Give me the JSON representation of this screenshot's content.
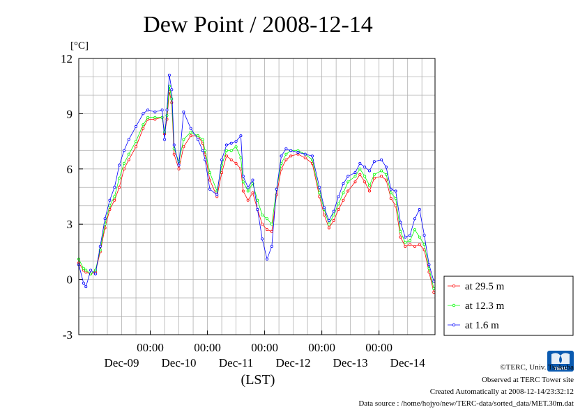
{
  "chart_data": {
    "type": "line",
    "title": "Dew Point / 2008-12-14",
    "y_unit": "[°C]",
    "xlabel": "(LST)",
    "ylim": [
      -3,
      12
    ],
    "y_ticks": [
      "12",
      "9",
      "6",
      "3",
      "0",
      "-3"
    ],
    "xlim": [
      "2008-12-08T18:00",
      "2008-12-14T23:30"
    ],
    "x_time_labels": [
      "00:00",
      "00:00",
      "00:00",
      "00:00",
      "00:00"
    ],
    "x_date_labels": [
      "Dec-09",
      "Dec-10",
      "Dec-11",
      "Dec-12",
      "Dec-13",
      "Dec-14"
    ],
    "grid": true,
    "legend_position": "right-bottom",
    "series": [
      {
        "name": "at 29.5 m",
        "color": "#ff0000",
        "x": [
          "12-08 18:00",
          "12-08 20:00",
          "12-08 21:00",
          "12-08 23:00",
          "12-09 01:00",
          "12-09 03:00",
          "12-09 05:00",
          "12-09 07:00",
          "12-09 09:00",
          "12-09 11:00",
          "12-09 13:00",
          "12-09 15:00",
          "12-09 18:00",
          "12-09 21:00",
          "12-09 23:00",
          "12-10 02:00",
          "12-10 05:00",
          "12-10 06:00",
          "12-10 07:00",
          "12-10 08:00",
          "12-10 09:00",
          "12-10 10:00",
          "12-10 12:00",
          "12-10 14:00",
          "12-10 17:00",
          "12-10 20:00",
          "12-10 22:00",
          "12-10 23:00",
          "12-11 01:00",
          "12-11 04:00",
          "12-11 06:00",
          "12-11 08:00",
          "12-11 10:00",
          "12-11 12:00",
          "12-11 14:00",
          "12-11 15:00",
          "12-11 17:00",
          "12-11 19:00",
          "12-11 21:00",
          "12-11 23:00",
          "12-12 01:00",
          "12-12 03:00",
          "12-12 05:00",
          "12-12 07:00",
          "12-12 09:00",
          "12-12 11:00",
          "12-12 14:00",
          "12-12 17:00",
          "12-12 20:00",
          "12-12 23:00",
          "12-13 01:00",
          "12-13 03:00",
          "12-13 05:00",
          "12-13 07:00",
          "12-13 09:00",
          "12-13 11:00",
          "12-13 14:00",
          "12-13 16:00",
          "12-13 18:00",
          "12-13 20:00",
          "12-13 22:00",
          "12-14 01:00",
          "12-14 03:00",
          "12-14 05:00",
          "12-14 07:00",
          "12-14 09:00",
          "12-14 11:00",
          "12-14 13:00",
          "12-14 15:00",
          "12-14 17:00",
          "12-14 19:00",
          "12-14 21:00",
          "12-14 23:00"
        ],
        "y": [
          0.9,
          0.5,
          0.4,
          0.3,
          0.4,
          1.5,
          2.8,
          3.8,
          4.3,
          5.0,
          6.0,
          6.5,
          7.2,
          8.2,
          8.7,
          8.7,
          8.8,
          7.9,
          8.7,
          10.2,
          9.6,
          6.8,
          6.0,
          7.2,
          7.8,
          7.8,
          7.4,
          6.8,
          5.4,
          4.5,
          5.8,
          6.7,
          6.5,
          6.3,
          6.0,
          4.8,
          4.3,
          4.7,
          3.8,
          3.0,
          2.7,
          2.6,
          4.6,
          6.0,
          6.5,
          6.7,
          6.8,
          6.6,
          6.3,
          4.5,
          3.5,
          2.8,
          3.2,
          3.8,
          4.3,
          4.8,
          5.3,
          5.7,
          5.3,
          4.8,
          5.5,
          5.6,
          5.4,
          4.4,
          4.0,
          2.3,
          1.8,
          1.9,
          1.8,
          1.9,
          1.6,
          0.4,
          -0.7
        ]
      },
      {
        "name": "at 12.3 m",
        "color": "#00ff00",
        "x": [
          "12-08 18:00",
          "12-08 20:00",
          "12-08 21:00",
          "12-08 23:00",
          "12-09 01:00",
          "12-09 03:00",
          "12-09 05:00",
          "12-09 07:00",
          "12-09 09:00",
          "12-09 11:00",
          "12-09 13:00",
          "12-09 15:00",
          "12-09 18:00",
          "12-09 21:00",
          "12-09 23:00",
          "12-10 02:00",
          "12-10 05:00",
          "12-10 06:00",
          "12-10 07:00",
          "12-10 08:00",
          "12-10 09:00",
          "12-10 10:00",
          "12-10 12:00",
          "12-10 14:00",
          "12-10 17:00",
          "12-10 20:00",
          "12-10 22:00",
          "12-10 23:00",
          "12-11 01:00",
          "12-11 04:00",
          "12-11 06:00",
          "12-11 08:00",
          "12-11 10:00",
          "12-11 12:00",
          "12-11 14:00",
          "12-11 15:00",
          "12-11 17:00",
          "12-11 19:00",
          "12-11 21:00",
          "12-11 23:00",
          "12-12 01:00",
          "12-12 03:00",
          "12-12 05:00",
          "12-12 07:00",
          "12-12 09:00",
          "12-12 11:00",
          "12-12 14:00",
          "12-12 17:00",
          "12-12 20:00",
          "12-12 23:00",
          "12-13 01:00",
          "12-13 03:00",
          "12-13 05:00",
          "12-13 07:00",
          "12-13 09:00",
          "12-13 11:00",
          "12-13 14:00",
          "12-13 16:00",
          "12-13 18:00",
          "12-13 20:00",
          "12-13 22:00",
          "12-14 01:00",
          "12-14 03:00",
          "12-14 05:00",
          "12-14 07:00",
          "12-14 09:00",
          "12-14 11:00",
          "12-14 13:00",
          "12-14 15:00",
          "12-14 17:00",
          "12-14 19:00",
          "12-14 21:00",
          "12-14 23:00"
        ],
        "y": [
          1.1,
          0.6,
          0.5,
          0.3,
          0.5,
          1.6,
          3.0,
          4.0,
          4.5,
          5.5,
          6.3,
          6.8,
          7.5,
          8.4,
          8.8,
          8.8,
          8.8,
          8.0,
          8.9,
          10.5,
          9.8,
          7.1,
          6.4,
          7.6,
          8.0,
          7.8,
          7.6,
          7.0,
          5.8,
          4.8,
          6.2,
          7.0,
          7.0,
          7.2,
          6.6,
          5.3,
          4.8,
          5.2,
          4.3,
          3.5,
          3.3,
          3.0,
          4.9,
          6.3,
          6.8,
          7.0,
          7.0,
          6.8,
          6.5,
          4.7,
          3.8,
          3.0,
          3.5,
          4.1,
          4.7,
          5.3,
          5.6,
          6.0,
          5.6,
          5.1,
          5.7,
          5.9,
          5.7,
          4.7,
          4.4,
          2.6,
          2.0,
          2.1,
          2.7,
          2.3,
          1.9,
          0.6,
          -0.5
        ]
      },
      {
        "name": "at 1.6 m",
        "color": "#0000ff",
        "x": [
          "12-08 18:00",
          "12-08 20:00",
          "12-08 21:00",
          "12-08 23:00",
          "12-09 01:00",
          "12-09 03:00",
          "12-09 05:00",
          "12-09 07:00",
          "12-09 09:00",
          "12-09 11:00",
          "12-09 13:00",
          "12-09 15:00",
          "12-09 18:00",
          "12-09 21:00",
          "12-09 23:00",
          "12-10 02:00",
          "12-10 05:00",
          "12-10 06:00",
          "12-10 07:00",
          "12-10 08:00",
          "12-10 09:00",
          "12-10 10:00",
          "12-10 12:00",
          "12-10 14:00",
          "12-10 17:00",
          "12-10 20:00",
          "12-10 22:00",
          "12-10 23:00",
          "12-11 01:00",
          "12-11 04:00",
          "12-11 06:00",
          "12-11 08:00",
          "12-11 10:00",
          "12-11 12:00",
          "12-11 14:00",
          "12-11 15:00",
          "12-11 17:00",
          "12-11 19:00",
          "12-11 21:00",
          "12-11 23:00",
          "12-12 01:00",
          "12-12 03:00",
          "12-12 05:00",
          "12-12 07:00",
          "12-12 09:00",
          "12-12 11:00",
          "12-12 14:00",
          "12-12 17:00",
          "12-12 20:00",
          "12-12 23:00",
          "12-13 01:00",
          "12-13 03:00",
          "12-13 05:00",
          "12-13 07:00",
          "12-13 09:00",
          "12-13 11:00",
          "12-13 14:00",
          "12-13 16:00",
          "12-13 18:00",
          "12-13 20:00",
          "12-13 22:00",
          "12-14 01:00",
          "12-14 03:00",
          "12-14 05:00",
          "12-14 07:00",
          "12-14 09:00",
          "12-14 11:00",
          "12-14 13:00",
          "12-14 15:00",
          "12-14 17:00",
          "12-14 19:00",
          "12-14 21:00",
          "12-14 23:00"
        ],
        "y": [
          0.8,
          -0.2,
          -0.4,
          0.5,
          0.3,
          1.8,
          3.3,
          4.3,
          5.0,
          6.2,
          7.0,
          7.6,
          8.3,
          9.0,
          9.2,
          9.1,
          9.2,
          7.6,
          9.2,
          11.1,
          10.3,
          7.3,
          6.2,
          9.1,
          8.2,
          7.6,
          7.0,
          6.5,
          4.9,
          4.6,
          6.5,
          7.3,
          7.4,
          7.5,
          7.8,
          5.6,
          5.0,
          5.4,
          3.8,
          2.2,
          1.1,
          1.8,
          4.9,
          6.7,
          7.1,
          7.0,
          6.9,
          6.8,
          6.7,
          5.0,
          3.9,
          3.2,
          3.7,
          4.5,
          5.2,
          5.6,
          5.8,
          6.3,
          6.1,
          5.9,
          6.4,
          6.5,
          6.1,
          4.9,
          4.8,
          3.1,
          2.3,
          2.4,
          3.3,
          3.8,
          2.4,
          0.8,
          -0.1
        ]
      }
    ]
  },
  "footer": {
    "credit_line1": "©TERC, Univ. Tsukuba",
    "credit_line2": "Observed at TERC Tower site",
    "created": "Created Automatically at 2008-12-14/23:32:12",
    "data_source": "Data source : /home/hojyo/new/TERC-data/sorted_data/MET.30m.dat"
  },
  "logo": {
    "text": "TERC",
    "color": "#0a5ab0"
  }
}
